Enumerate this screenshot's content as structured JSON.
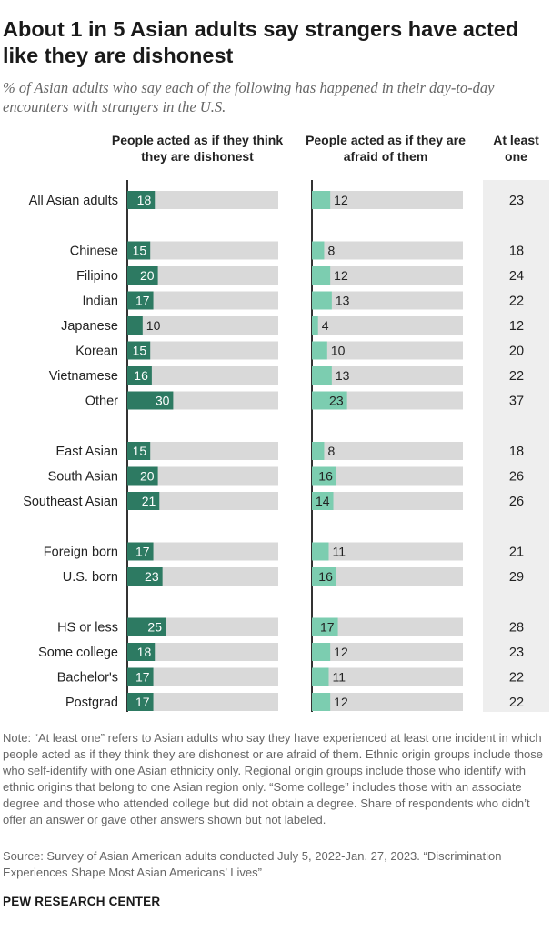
{
  "title": "About 1 in 5 Asian adults say strangers have acted like they are dishonest",
  "subtitle": "% of Asian adults who say each of the following has happened in their day-to-day encounters with strangers in the U.S.",
  "columns": {
    "dishonest": "People acted as if they think they are dishonest",
    "afraid": "People acted as if they are afraid of them",
    "at_least_one": "At least one"
  },
  "colors": {
    "dishonest_bar": "#2d7a62",
    "afraid_bar": "#7ccdb0",
    "track": "#d9d9d9",
    "label_on_dark": "#ffffff",
    "label_on_light": "#222222"
  },
  "chart_data": {
    "type": "bar",
    "categories": [
      "All Asian adults",
      "Chinese",
      "Filipino",
      "Indian",
      "Japanese",
      "Korean",
      "Vietnamese",
      "Other",
      "East Asian",
      "South Asian",
      "Southeast Asian",
      "Foreign born",
      "U.S. born",
      "HS or less",
      "Some college",
      "Bachelor's",
      "Postgrad"
    ],
    "groups": [
      [
        0
      ],
      [
        1,
        2,
        3,
        4,
        5,
        6,
        7
      ],
      [
        8,
        9,
        10
      ],
      [
        11,
        12
      ],
      [
        13,
        14,
        15,
        16
      ]
    ],
    "series": [
      {
        "name": "People acted as if they think they are dishonest",
        "values": [
          18,
          15,
          20,
          17,
          10,
          15,
          16,
          30,
          15,
          20,
          21,
          17,
          23,
          25,
          18,
          17,
          17
        ]
      },
      {
        "name": "People acted as if they are afraid of them",
        "values": [
          12,
          8,
          12,
          13,
          4,
          10,
          13,
          23,
          8,
          16,
          14,
          11,
          16,
          17,
          12,
          11,
          12
        ]
      },
      {
        "name": "At least one",
        "values": [
          23,
          18,
          24,
          22,
          12,
          20,
          22,
          37,
          18,
          26,
          26,
          21,
          29,
          28,
          23,
          22,
          22
        ]
      }
    ],
    "xlim": [
      0,
      100
    ]
  },
  "note": "Note: “At least one” refers to Asian adults who say they have experienced at least one incident in which people acted as if they think they are dishonest or are afraid of them. Ethnic origin groups include those who self-identify with one Asian ethnicity only. Regional origin groups include those who identify with ethnic origins that belong to one Asian region only. “Some college” includes those with an associate degree and those who attended college but did not obtain a degree. Share of respondents who didn’t offer an answer or gave other answers shown but not labeled.",
  "source": "Source: Survey of Asian American adults conducted July 5, 2022-Jan. 27, 2023. “Discrimination Experiences Shape Most Asian Americans’ Lives”",
  "brand": "PEW RESEARCH CENTER"
}
